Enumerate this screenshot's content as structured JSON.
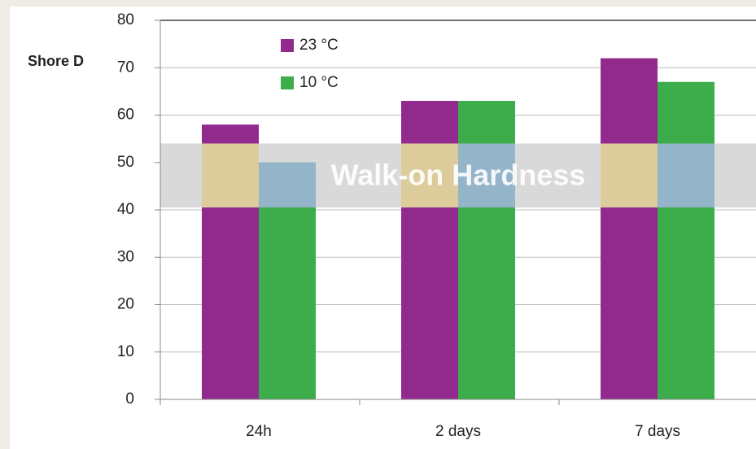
{
  "chart_data": {
    "type": "bar",
    "y_label": "Shore D",
    "categories": [
      "24h",
      "2 days",
      "7 days"
    ],
    "series": [
      {
        "name": "23 °C",
        "color": "#922a8e",
        "band_color": "#dccb9b",
        "values": [
          58,
          63,
          72
        ]
      },
      {
        "name": "10 °C",
        "color": "#3cad4a",
        "band_color": "#93b4c9",
        "values": [
          50,
          63,
          67
        ]
      }
    ],
    "band": {
      "label": "Walk-on Hardness",
      "range": [
        40.5,
        54
      ],
      "color": "#d9d9d9"
    },
    "ylim": [
      0,
      80
    ],
    "yticks": [
      0,
      10,
      20,
      30,
      40,
      50,
      60,
      70,
      80
    ],
    "grid": true
  }
}
